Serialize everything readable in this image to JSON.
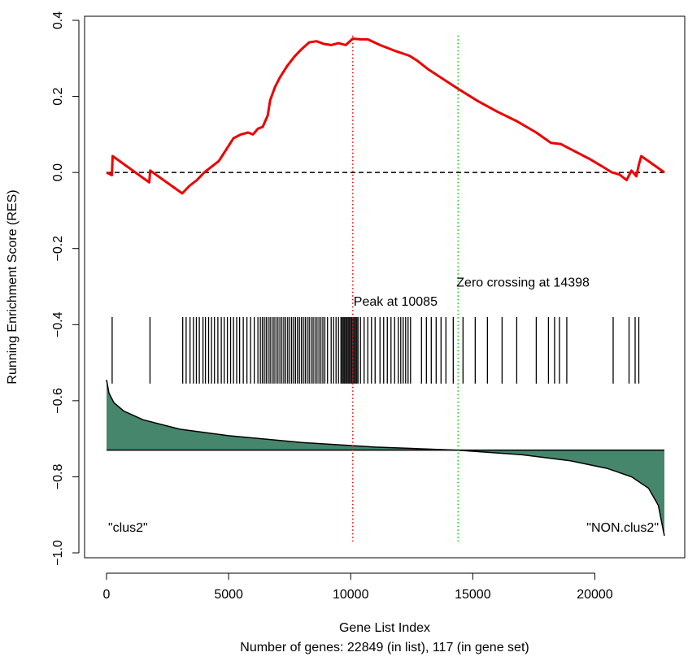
{
  "chart_data": {
    "type": "line",
    "title": "",
    "xlabel": "Gene List Index",
    "subtitle": "Number of genes: 22849 (in list), 117 (in gene set)",
    "ylabel": "Running Enrichment Score (RES)",
    "xlim": [
      0,
      22849
    ],
    "ylim": [
      -1.0,
      0.4
    ],
    "grid": false,
    "x_ticks": [
      0,
      5000,
      10000,
      15000,
      20000
    ],
    "x_tick_labels": [
      "0",
      "5000",
      "10000",
      "15000",
      "20000"
    ],
    "y_ticks": [
      -1.0,
      -0.8,
      -0.6,
      -0.4,
      -0.2,
      0.0,
      0.2,
      0.4
    ],
    "y_tick_labels": [
      "−1.0",
      "−0.8",
      "−0.6",
      "−0.4",
      "−0.2",
      "0.0",
      "0.2",
      "0.4"
    ],
    "colors": {
      "res_line": "#ee0000",
      "peak_line": "#ee0000",
      "zero_cross_line": "#00cc00",
      "ranked_fill": "#45866c"
    },
    "series": [
      {
        "kind": "running_enrichment_score",
        "points": [
          [
            0,
            0.0
          ],
          [
            220,
            -0.007
          ],
          [
            250,
            0.043
          ],
          [
            1750,
            -0.026
          ],
          [
            1790,
            0.005
          ],
          [
            3100,
            -0.055
          ],
          [
            3400,
            -0.035
          ],
          [
            3700,
            -0.02
          ],
          [
            4000,
            0.0
          ],
          [
            4300,
            0.015
          ],
          [
            4600,
            0.03
          ],
          [
            4900,
            0.06
          ],
          [
            5200,
            0.09
          ],
          [
            5500,
            0.1
          ],
          [
            5800,
            0.105
          ],
          [
            6000,
            0.1
          ],
          [
            6200,
            0.115
          ],
          [
            6400,
            0.12
          ],
          [
            6600,
            0.15
          ],
          [
            6700,
            0.19
          ],
          [
            6900,
            0.225
          ],
          [
            7100,
            0.25
          ],
          [
            7400,
            0.28
          ],
          [
            7700,
            0.305
          ],
          [
            8000,
            0.325
          ],
          [
            8300,
            0.342
          ],
          [
            8600,
            0.345
          ],
          [
            8900,
            0.338
          ],
          [
            9200,
            0.335
          ],
          [
            9500,
            0.34
          ],
          [
            9800,
            0.335
          ],
          [
            10085,
            0.352
          ],
          [
            10400,
            0.35
          ],
          [
            10700,
            0.35
          ],
          [
            11200,
            0.335
          ],
          [
            11800,
            0.32
          ],
          [
            12400,
            0.307
          ],
          [
            12700,
            0.295
          ],
          [
            13200,
            0.27
          ],
          [
            13800,
            0.245
          ],
          [
            14398,
            0.22
          ],
          [
            15200,
            0.188
          ],
          [
            16000,
            0.16
          ],
          [
            16800,
            0.135
          ],
          [
            17600,
            0.105
          ],
          [
            18200,
            0.078
          ],
          [
            18600,
            0.075
          ],
          [
            19200,
            0.055
          ],
          [
            19800,
            0.035
          ],
          [
            20400,
            0.012
          ],
          [
            20700,
            0.0
          ],
          [
            21000,
            -0.005
          ],
          [
            21300,
            -0.02
          ],
          [
            21500,
            0.005
          ],
          [
            21700,
            -0.01
          ],
          [
            21800,
            0.02
          ],
          [
            21900,
            0.043
          ],
          [
            22300,
            0.025
          ],
          [
            22849,
            0.0
          ]
        ]
      },
      {
        "kind": "ranked_list_metric",
        "baseline": -0.73,
        "points": [
          [
            0,
            -0.545
          ],
          [
            100,
            -0.58
          ],
          [
            300,
            -0.605
          ],
          [
            700,
            -0.627
          ],
          [
            1500,
            -0.65
          ],
          [
            3000,
            -0.675
          ],
          [
            5000,
            -0.692
          ],
          [
            8000,
            -0.71
          ],
          [
            11000,
            -0.722
          ],
          [
            14398,
            -0.73
          ],
          [
            17000,
            -0.742
          ],
          [
            19000,
            -0.758
          ],
          [
            20500,
            -0.778
          ],
          [
            21500,
            -0.8
          ],
          [
            22200,
            -0.83
          ],
          [
            22600,
            -0.875
          ],
          [
            22800,
            -0.94
          ],
          [
            22849,
            -0.955
          ]
        ]
      }
    ],
    "gene_set_hits": [
      230,
      1780,
      3120,
      3260,
      3420,
      3560,
      3680,
      3800,
      3950,
      4050,
      4180,
      4300,
      4420,
      4560,
      4700,
      4820,
      4950,
      5080,
      5200,
      5330,
      5450,
      5600,
      5750,
      5900,
      6050,
      6200,
      6300,
      6380,
      6460,
      6540,
      6620,
      6700,
      6780,
      6860,
      6940,
      7020,
      7100,
      7180,
      7260,
      7340,
      7420,
      7500,
      7580,
      7660,
      7740,
      7820,
      7900,
      7980,
      8060,
      8140,
      8220,
      8300,
      8380,
      8460,
      8540,
      8620,
      8700,
      8780,
      8860,
      8940,
      9050,
      9200,
      9300,
      9400,
      9500,
      9600,
      9650,
      9700,
      9750,
      9800,
      9850,
      9900,
      9950,
      10000,
      10050,
      10100,
      10150,
      10200,
      10250,
      10300,
      10400,
      10550,
      10700,
      10850,
      11000,
      11200,
      11350,
      11500,
      11650,
      11800,
      11950,
      12050,
      12150,
      12250,
      12350,
      12450,
      12900,
      13100,
      13300,
      13500,
      13700,
      13900,
      14200,
      14600,
      15100,
      15600,
      16200,
      16800,
      17600,
      18100,
      18350,
      18550,
      18850,
      20750,
      21400,
      21650,
      21800
    ],
    "annotations": {
      "peak": {
        "x": 10085,
        "label": "Peak at 10085"
      },
      "zero_crossing": {
        "x": 14398,
        "label": "Zero crossing at 14398"
      },
      "left_label": "\"clus2\"",
      "right_label": "\"NON.clus2\""
    }
  }
}
